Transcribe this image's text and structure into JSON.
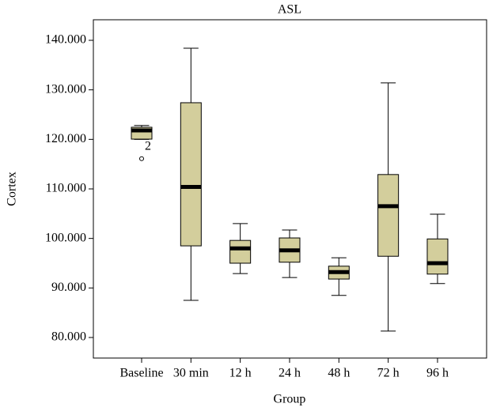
{
  "chart_data": {
    "type": "box",
    "title": "ASL",
    "x_label": "Group",
    "y_label": "Cortex",
    "categories": [
      "Baseline",
      "30 min",
      "12 h",
      "24 h",
      "48 h",
      "72 h",
      "96 h"
    ],
    "color": "#d3ce9c",
    "boxes": [
      {
        "low": 120.0,
        "q1": 120.05,
        "median": 121.8,
        "q3": 122.45,
        "high": 122.8,
        "outliers": [
          {
            "value": 116.1,
            "case": "2"
          }
        ]
      },
      {
        "low": 87.5,
        "q1": 98.5,
        "median": 110.4,
        "q3": 127.4,
        "high": 138.4,
        "outliers": []
      },
      {
        "low": 92.9,
        "q1": 95.0,
        "median": 98.0,
        "q3": 99.6,
        "high": 103.0,
        "outliers": []
      },
      {
        "low": 92.1,
        "q1": 95.2,
        "median": 97.6,
        "q3": 100.1,
        "high": 101.7,
        "outliers": []
      },
      {
        "low": 88.5,
        "q1": 91.8,
        "median": 93.2,
        "q3": 94.4,
        "high": 96.1,
        "outliers": []
      },
      {
        "low": 81.3,
        "q1": 96.4,
        "median": 106.5,
        "q3": 112.9,
        "high": 131.4,
        "outliers": []
      },
      {
        "low": 90.9,
        "q1": 92.8,
        "median": 95.0,
        "q3": 99.9,
        "high": 104.9,
        "outliers": []
      }
    ],
    "ylim": [
      75.85,
      144.15
    ],
    "yticks": [
      {
        "value": 80,
        "label": "80.000"
      },
      {
        "value": 90,
        "label": "90.000"
      },
      {
        "value": 100,
        "label": "100.000"
      },
      {
        "value": 110,
        "label": "110.000"
      },
      {
        "value": 120,
        "label": "120.000"
      },
      {
        "value": 130,
        "label": "130.000"
      },
      {
        "value": 140,
        "label": "140.000"
      }
    ]
  }
}
